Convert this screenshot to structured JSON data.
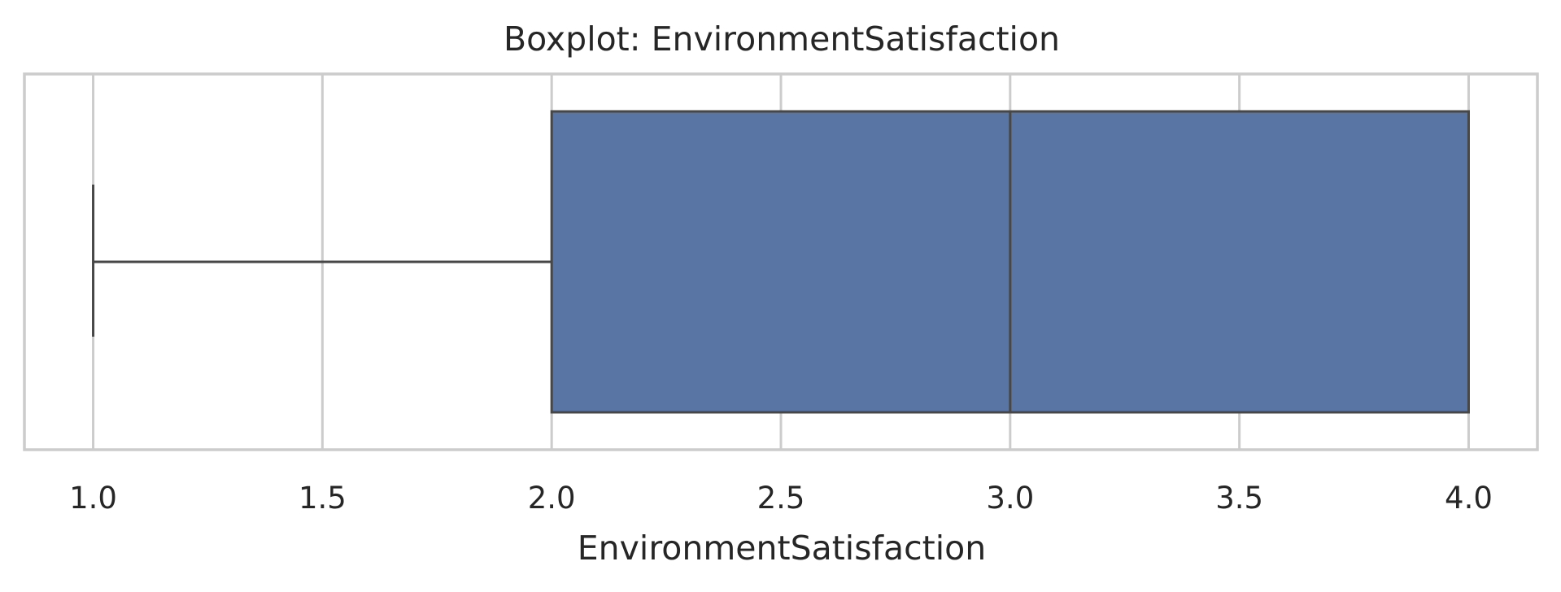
{
  "chart_data": {
    "type": "boxplot",
    "title": "Boxplot: EnvironmentSatisfaction",
    "xlabel": "EnvironmentSatisfaction",
    "ylabel": "",
    "orientation": "horizontal",
    "xlim": [
      0.85,
      4.15
    ],
    "xticks": [
      1.0,
      1.5,
      2.0,
      2.5,
      3.0,
      3.5,
      4.0
    ],
    "xtick_labels": [
      "1.0",
      "1.5",
      "2.0",
      "2.5",
      "3.0",
      "3.5",
      "4.0"
    ],
    "grid": true,
    "legend": "none",
    "series": [
      {
        "whisker_low": 1.0,
        "q1": 2.0,
        "median": 3.0,
        "q3": 4.0,
        "whisker_high": 4.0,
        "outliers": []
      }
    ]
  },
  "colors": {
    "box_fill": "#5875a4",
    "line": "#474747",
    "grid": "#cccccc",
    "frame": "#cccccc",
    "text": "#262626",
    "background": "#ffffff"
  }
}
